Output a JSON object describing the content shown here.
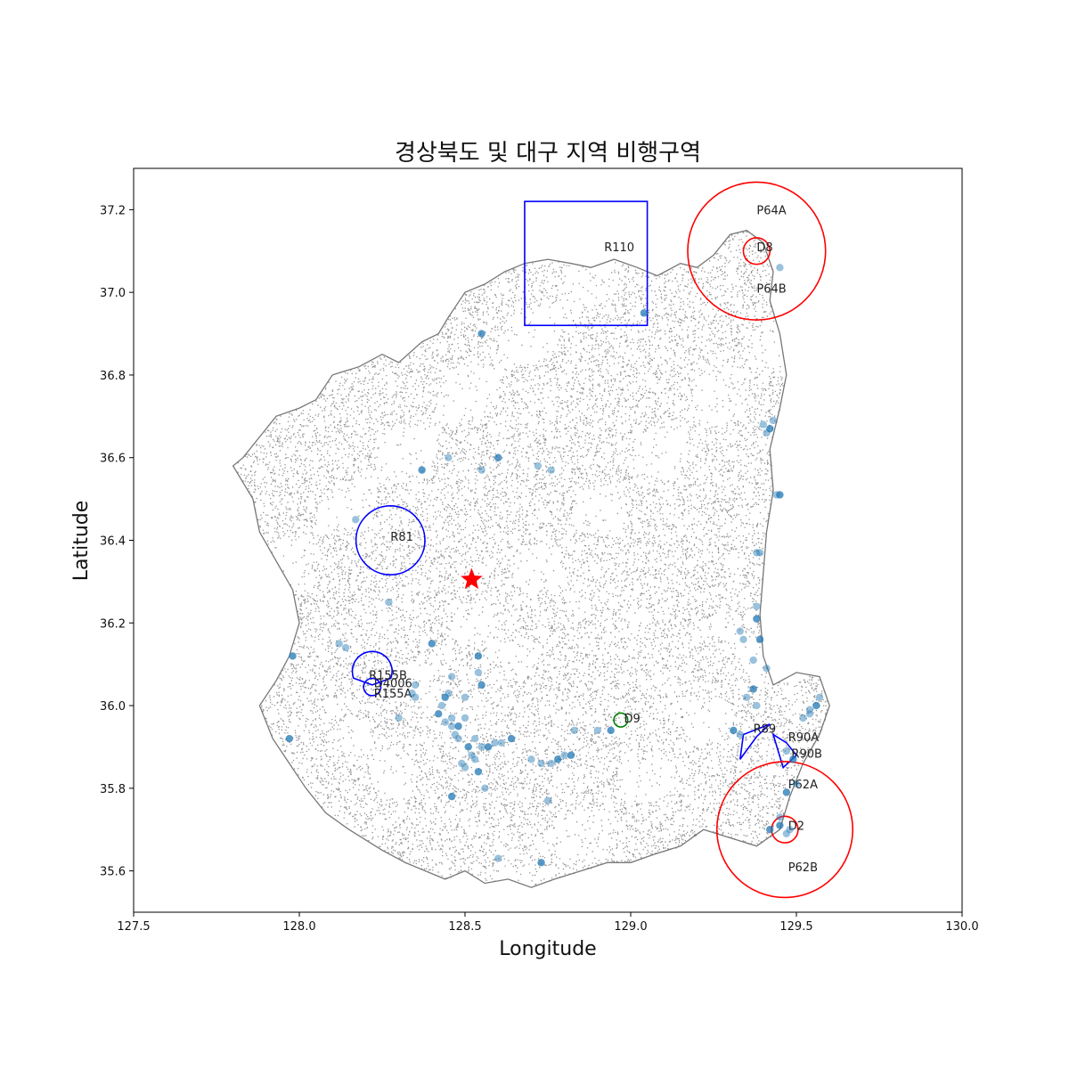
{
  "chart_data": {
    "type": "scatter",
    "title": "경상북도 및 대구 지역 비행구역",
    "xlabel": "Longitude",
    "ylabel": "Latitude",
    "xlim": [
      127.5,
      130.0
    ],
    "ylim": [
      35.5,
      37.3
    ],
    "xticks": [
      127.5,
      128.0,
      128.5,
      129.0,
      129.5,
      130.0
    ],
    "xtick_labels": [
      "127.5",
      "128.0",
      "128.5",
      "129.0",
      "129.5",
      "130.0"
    ],
    "yticks": [
      35.6,
      35.8,
      36.0,
      36.2,
      36.4,
      36.6,
      36.8,
      37.0,
      37.2
    ],
    "ytick_labels": [
      "35.6",
      "35.8",
      "36.0",
      "36.2",
      "36.4",
      "36.6",
      "36.8",
      "37.0",
      "37.2"
    ],
    "grid": false,
    "colors": {
      "land": "#808080",
      "restricted": "#0000ff",
      "prohibited": "#ff0000",
      "danger": "#008000",
      "points": "#1f77b4",
      "star": "#ff0000"
    },
    "zones": [
      {
        "label": "R110",
        "shape": "rect",
        "color": "#0000ff",
        "x0": 128.68,
        "x1": 129.05,
        "y0": 36.92,
        "y1": 37.22,
        "label_at": [
          128.92,
          37.11
        ]
      },
      {
        "label": "P64A",
        "shape": "circle",
        "color": "#ff0000",
        "cx": 129.38,
        "cy": 37.1,
        "r": 0.208,
        "label_at": [
          129.38,
          37.2
        ]
      },
      {
        "label": "D8",
        "shape": "circle",
        "color": "#ff0000",
        "cx": 129.38,
        "cy": 37.1,
        "r": 0.04,
        "label_at": [
          129.38,
          37.11
        ]
      },
      {
        "label": "P64B",
        "shape": "none",
        "color": "#ff0000",
        "label_at": [
          129.38,
          37.01
        ]
      },
      {
        "label": "R81",
        "shape": "circle",
        "color": "#0000ff",
        "cx": 128.275,
        "cy": 36.4,
        "r": 0.104,
        "label_at": [
          128.275,
          36.41
        ]
      },
      {
        "label": "R155B",
        "shape": "arc",
        "color": "#0000ff",
        "cx": 128.22,
        "cy": 36.05,
        "r": 0.06,
        "label_at": [
          128.21,
          36.075
        ]
      },
      {
        "label": "D4006",
        "shape": "circle",
        "color": "#0000ff",
        "cx": 128.22,
        "cy": 36.045,
        "r": 0.026,
        "label_at": [
          128.225,
          36.055
        ]
      },
      {
        "label": "R155A",
        "shape": "none",
        "color": "#0000ff",
        "label_at": [
          128.225,
          36.03
        ]
      },
      {
        "label": "D9",
        "shape": "circle",
        "color": "#008000",
        "cx": 128.97,
        "cy": 35.965,
        "r": 0.021,
        "label_at": [
          128.98,
          35.97
        ]
      },
      {
        "label": "R89",
        "shape": "polygon",
        "color": "#0000ff",
        "points": [
          [
            129.33,
            35.87
          ],
          [
            129.34,
            35.93
          ],
          [
            129.42,
            35.955
          ],
          [
            129.38,
            35.925
          ]
        ],
        "label_at": [
          129.37,
          35.945
        ]
      },
      {
        "label": "R90A",
        "shape": "polygon",
        "color": "#0000ff",
        "points": [
          [
            129.43,
            35.93
          ],
          [
            129.46,
            35.85
          ],
          [
            129.5,
            35.88
          ],
          [
            129.47,
            35.91
          ]
        ],
        "label_at": [
          129.475,
          35.925
        ]
      },
      {
        "label": "R90B",
        "shape": "none",
        "color": "#0000ff",
        "label_at": [
          129.485,
          35.885
        ]
      },
      {
        "label": "P62A",
        "shape": "circle",
        "color": "#ff0000",
        "cx": 129.465,
        "cy": 35.7,
        "r": 0.205,
        "label_at": [
          129.475,
          35.81
        ]
      },
      {
        "label": "D2",
        "shape": "circle",
        "color": "#ff0000",
        "cx": 129.465,
        "cy": 35.7,
        "r": 0.04,
        "label_at": [
          129.475,
          35.71
        ]
      },
      {
        "label": "P62B",
        "shape": "none",
        "color": "#ff0000",
        "label_at": [
          129.475,
          35.61
        ]
      }
    ],
    "star": {
      "x": 128.52,
      "y": 36.305,
      "color": "#ff0000"
    },
    "drone_points": [
      [
        128.55,
        36.9
      ],
      [
        128.45,
        36.6
      ],
      [
        128.55,
        36.57
      ],
      [
        128.6,
        36.6
      ],
      [
        128.72,
        36.58
      ],
      [
        128.76,
        36.57
      ],
      [
        128.37,
        36.57
      ],
      [
        128.17,
        36.45
      ],
      [
        128.27,
        36.25
      ],
      [
        128.4,
        36.15
      ],
      [
        128.12,
        36.15
      ],
      [
        128.14,
        36.14
      ],
      [
        127.98,
        36.12
      ],
      [
        128.35,
        36.05
      ],
      [
        128.46,
        36.07
      ],
      [
        128.54,
        36.12
      ],
      [
        128.54,
        36.08
      ],
      [
        128.5,
        36.02
      ],
      [
        128.55,
        36.05
      ],
      [
        128.43,
        36.0
      ],
      [
        128.46,
        35.97
      ],
      [
        128.42,
        35.98
      ],
      [
        128.44,
        35.96
      ],
      [
        128.46,
        35.95
      ],
      [
        128.48,
        35.95
      ],
      [
        128.5,
        35.97
      ],
      [
        128.45,
        36.03
      ],
      [
        128.44,
        36.02
      ],
      [
        128.47,
        35.93
      ],
      [
        128.48,
        35.92
      ],
      [
        128.51,
        35.9
      ],
      [
        128.53,
        35.92
      ],
      [
        128.55,
        35.9
      ],
      [
        128.57,
        35.9
      ],
      [
        128.59,
        35.91
      ],
      [
        128.61,
        35.91
      ],
      [
        128.64,
        35.92
      ],
      [
        128.52,
        35.88
      ],
      [
        128.53,
        35.87
      ],
      [
        128.54,
        35.84
      ],
      [
        128.49,
        35.86
      ],
      [
        128.5,
        35.85
      ],
      [
        128.46,
        35.78
      ],
      [
        128.7,
        35.87
      ],
      [
        128.73,
        35.86
      ],
      [
        128.78,
        35.87
      ],
      [
        128.76,
        35.86
      ],
      [
        128.8,
        35.88
      ],
      [
        128.82,
        35.88
      ],
      [
        128.83,
        35.94
      ],
      [
        128.9,
        35.94
      ],
      [
        128.94,
        35.94
      ],
      [
        128.75,
        35.77
      ],
      [
        128.6,
        35.63
      ],
      [
        128.73,
        35.62
      ],
      [
        128.56,
        35.8
      ],
      [
        128.3,
        35.97
      ],
      [
        127.97,
        35.92
      ],
      [
        128.34,
        36.03
      ],
      [
        128.35,
        36.02
      ],
      [
        129.04,
        36.95
      ],
      [
        129.45,
        37.06
      ],
      [
        129.4,
        36.68
      ],
      [
        129.42,
        36.67
      ],
      [
        129.43,
        36.69
      ],
      [
        129.44,
        36.51
      ],
      [
        129.45,
        36.51
      ],
      [
        129.39,
        36.37
      ],
      [
        129.38,
        36.24
      ],
      [
        129.38,
        36.21
      ],
      [
        129.33,
        36.18
      ],
      [
        129.34,
        36.16
      ],
      [
        129.39,
        36.16
      ],
      [
        129.41,
        36.09
      ],
      [
        129.37,
        36.11
      ],
      [
        129.37,
        36.04
      ],
      [
        129.38,
        36.0
      ],
      [
        129.35,
        36.02
      ],
      [
        129.31,
        35.94
      ],
      [
        129.33,
        35.93
      ],
      [
        129.47,
        35.89
      ],
      [
        129.49,
        35.87
      ],
      [
        129.52,
        35.97
      ],
      [
        129.54,
        35.98
      ],
      [
        129.56,
        36.0
      ],
      [
        129.57,
        36.02
      ],
      [
        129.54,
        35.99
      ],
      [
        129.47,
        35.79
      ],
      [
        129.5,
        35.81
      ],
      [
        129.45,
        35.73
      ],
      [
        129.45,
        35.71
      ],
      [
        129.48,
        35.7
      ],
      [
        129.47,
        35.69
      ],
      [
        129.42,
        35.7
      ],
      [
        129.41,
        36.66
      ],
      [
        129.38,
        36.37
      ]
    ],
    "boundary_outline": [
      [
        127.83,
        36.6
      ],
      [
        127.88,
        36.65
      ],
      [
        127.93,
        36.7
      ],
      [
        128.0,
        36.72
      ],
      [
        128.05,
        36.74
      ],
      [
        128.1,
        36.8
      ],
      [
        128.18,
        36.82
      ],
      [
        128.25,
        36.85
      ],
      [
        128.3,
        36.83
      ],
      [
        128.37,
        36.88
      ],
      [
        128.42,
        36.9
      ],
      [
        128.45,
        36.94
      ],
      [
        128.5,
        37.0
      ],
      [
        128.56,
        37.02
      ],
      [
        128.62,
        37.05
      ],
      [
        128.68,
        37.07
      ],
      [
        128.75,
        37.08
      ],
      [
        128.82,
        37.07
      ],
      [
        128.88,
        37.06
      ],
      [
        128.95,
        37.08
      ],
      [
        129.02,
        37.06
      ],
      [
        129.08,
        37.04
      ],
      [
        129.15,
        37.07
      ],
      [
        129.2,
        37.06
      ],
      [
        129.25,
        37.09
      ],
      [
        129.3,
        37.14
      ],
      [
        129.35,
        37.15
      ],
      [
        129.4,
        37.12
      ],
      [
        129.43,
        37.05
      ],
      [
        129.42,
        36.98
      ],
      [
        129.45,
        36.9
      ],
      [
        129.47,
        36.8
      ],
      [
        129.45,
        36.72
      ],
      [
        129.42,
        36.62
      ],
      [
        129.43,
        36.52
      ],
      [
        129.41,
        36.42
      ],
      [
        129.4,
        36.32
      ],
      [
        129.39,
        36.22
      ],
      [
        129.4,
        36.12
      ],
      [
        129.43,
        36.05
      ],
      [
        129.5,
        36.08
      ],
      [
        129.57,
        36.07
      ],
      [
        129.6,
        36.0
      ],
      [
        129.57,
        35.93
      ],
      [
        129.52,
        35.86
      ],
      [
        129.48,
        35.78
      ],
      [
        129.45,
        35.7
      ],
      [
        129.38,
        35.66
      ],
      [
        129.3,
        35.68
      ],
      [
        129.22,
        35.7
      ],
      [
        129.15,
        35.66
      ],
      [
        129.07,
        35.64
      ],
      [
        129.0,
        35.62
      ],
      [
        128.93,
        35.62
      ],
      [
        128.85,
        35.6
      ],
      [
        128.77,
        35.58
      ],
      [
        128.7,
        35.56
      ],
      [
        128.63,
        35.58
      ],
      [
        128.56,
        35.57
      ],
      [
        128.5,
        35.6
      ],
      [
        128.44,
        35.58
      ],
      [
        128.38,
        35.6
      ],
      [
        128.32,
        35.62
      ],
      [
        128.25,
        35.65
      ],
      [
        128.15,
        35.7
      ],
      [
        128.08,
        35.74
      ],
      [
        128.02,
        35.8
      ],
      [
        127.97,
        35.86
      ],
      [
        127.92,
        35.92
      ],
      [
        127.88,
        36.0
      ],
      [
        127.93,
        36.06
      ],
      [
        127.97,
        36.12
      ],
      [
        128.0,
        36.2
      ],
      [
        127.98,
        36.28
      ],
      [
        127.93,
        36.35
      ],
      [
        127.88,
        36.42
      ],
      [
        127.86,
        36.5
      ],
      [
        127.8,
        36.58
      ]
    ],
    "seed": 20240601
  }
}
